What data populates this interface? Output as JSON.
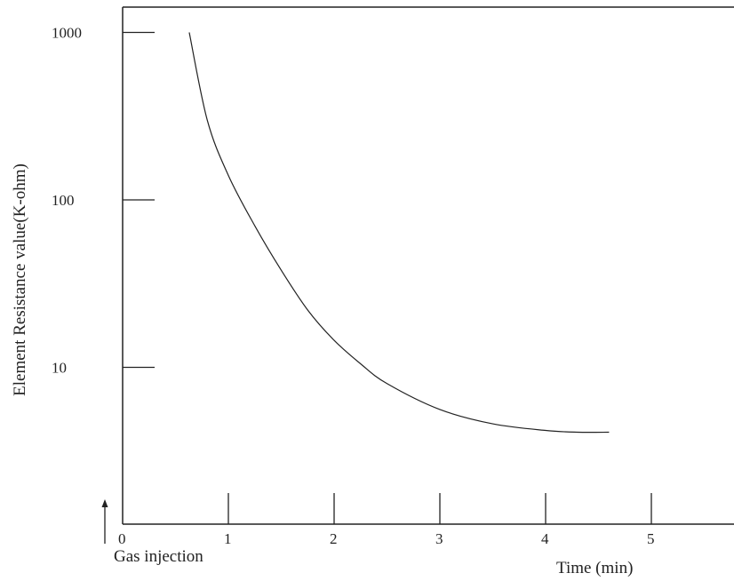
{
  "chart_data": {
    "type": "line",
    "title": "",
    "xlabel": "Time (min)",
    "ylabel": "Element Resistance value(K-ohm)",
    "yscale": "log",
    "xlim": [
      0,
      5.6
    ],
    "ylim": [
      1,
      1000
    ],
    "grid": false,
    "x_ticks": [
      {
        "value": 0,
        "label": "0"
      },
      {
        "value": 1,
        "label": "1"
      },
      {
        "value": 2,
        "label": "2"
      },
      {
        "value": 3,
        "label": "3"
      },
      {
        "value": 4,
        "label": "4"
      },
      {
        "value": 5,
        "label": "5"
      }
    ],
    "y_ticks": [
      {
        "value": 1000,
        "label": "1000"
      },
      {
        "value": 100,
        "label": "100"
      },
      {
        "value": 10,
        "label": "10"
      }
    ],
    "series": [
      {
        "x": [
          0.63,
          0.8,
          1.0,
          1.25,
          1.5,
          1.75,
          2.0,
          2.25,
          2.5,
          3.0,
          3.5,
          4.0,
          4.3,
          4.6
        ],
        "y": [
          1000,
          300,
          140,
          70,
          38,
          22,
          14.5,
          10.5,
          8.0,
          5.6,
          4.6,
          4.2,
          4.1,
          4.1
        ]
      }
    ],
    "annotations": [
      {
        "text": "Gas injection",
        "x": 0,
        "arrow": "up"
      }
    ],
    "colors": {
      "line": "#222222",
      "axis": "#222222"
    }
  }
}
